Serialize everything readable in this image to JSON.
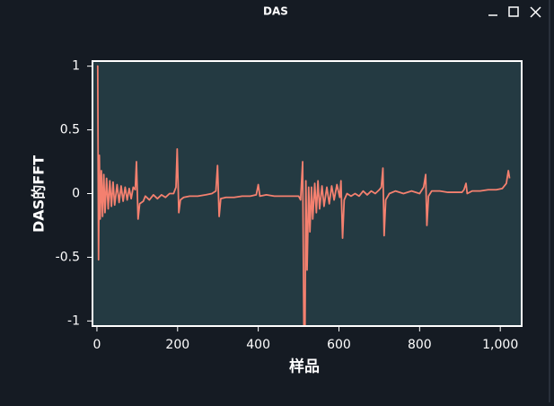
{
  "window_title": "DAS",
  "chart_data": {
    "type": "line",
    "xlabel": "样品",
    "ylabel": "DAS的FFT",
    "series": [
      {
        "name": "DAS",
        "color": "#f4806f",
        "x": [
          0,
          2,
          4,
          6,
          8,
          11,
          14,
          17,
          20,
          24,
          28,
          32,
          36,
          40,
          44,
          50,
          55,
          60,
          65,
          70,
          75,
          80,
          85,
          90,
          95,
          98,
          102,
          106,
          115,
          120,
          130,
          140,
          150,
          160,
          170,
          180,
          190,
          196,
          199,
          203,
          207,
          215,
          230,
          250,
          270,
          285,
          295,
          299,
          303,
          307,
          320,
          340,
          360,
          380,
          395,
          400,
          404,
          420,
          440,
          460,
          480,
          500,
          505,
          510,
          513,
          516,
          518,
          521,
          525,
          528,
          532,
          535,
          540,
          544,
          548,
          552,
          558,
          563,
          570,
          576,
          582,
          588,
          595,
          602,
          605,
          609,
          613,
          620,
          630,
          640,
          650,
          660,
          670,
          680,
          690,
          700,
          705,
          709,
          712,
          716,
          725,
          740,
          760,
          780,
          800,
          810,
          815,
          818,
          822,
          830,
          850,
          870,
          890,
          905,
          910,
          915,
          918,
          930,
          950,
          970,
          990,
          1005,
          1015,
          1020,
          1023
        ],
        "values": [
          1.0,
          1.0,
          -0.52,
          0.3,
          -0.2,
          0.18,
          -0.18,
          0.15,
          -0.15,
          0.12,
          -0.12,
          0.1,
          -0.1,
          0.09,
          -0.09,
          0.07,
          -0.07,
          0.06,
          -0.06,
          0.05,
          -0.05,
          0.04,
          -0.04,
          0.05,
          0.03,
          0.25,
          -0.2,
          -0.08,
          -0.06,
          -0.02,
          -0.05,
          -0.01,
          -0.04,
          -0.01,
          -0.03,
          0.0,
          0.0,
          0.05,
          0.35,
          -0.15,
          -0.05,
          -0.03,
          -0.02,
          -0.02,
          -0.01,
          0.0,
          0.02,
          0.22,
          -0.18,
          -0.04,
          -0.03,
          -0.03,
          -0.02,
          -0.02,
          -0.01,
          0.07,
          -0.02,
          -0.01,
          -0.02,
          -0.02,
          -0.02,
          -0.02,
          -0.05,
          0.25,
          -1.03,
          -1.03,
          0.1,
          -0.6,
          0.05,
          -0.3,
          0.05,
          -0.2,
          0.08,
          -0.15,
          0.1,
          -0.12,
          0.06,
          -0.1,
          0.05,
          -0.08,
          0.06,
          -0.05,
          0.07,
          -0.03,
          0.1,
          -0.35,
          -0.05,
          0.0,
          -0.02,
          0.0,
          -0.02,
          0.02,
          -0.01,
          0.02,
          0.0,
          0.03,
          0.05,
          0.2,
          -0.33,
          -0.05,
          0.0,
          0.02,
          0.0,
          0.02,
          0.0,
          0.05,
          0.15,
          -0.25,
          -0.02,
          0.02,
          0.02,
          0.01,
          0.01,
          0.01,
          0.03,
          0.08,
          0.0,
          0.02,
          0.02,
          0.03,
          0.03,
          0.04,
          0.08,
          0.18,
          0.12
        ]
      }
    ],
    "xlim": [
      -11,
      1053
    ],
    "ylim": [
      -1.04,
      1.04
    ],
    "xticks": [
      0,
      200,
      400,
      600,
      800,
      {
        "value": 1000,
        "label": "1,000"
      }
    ],
    "yticks": [
      -1,
      -0.5,
      0,
      0.5,
      1
    ]
  }
}
